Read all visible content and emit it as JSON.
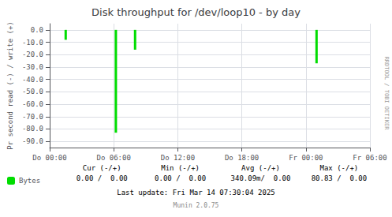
{
  "chart_data": {
    "type": "bar",
    "title": "Disk throughput for /dev/loop10 - by day",
    "ylabel": "Pr second read (-) / write (+)",
    "x": [
      1.5,
      6.2,
      8.0,
      25.0
    ],
    "series": [
      {
        "name": "Bytes",
        "color": "#00dd00",
        "values": [
          -8,
          -83,
          -16,
          -27
        ]
      }
    ],
    "xlim": [
      0,
      30
    ],
    "xticks": [
      {
        "value": 0,
        "label": "Do 00:00"
      },
      {
        "value": 6,
        "label": "Do 06:00"
      },
      {
        "value": 12,
        "label": "Do 12:00"
      },
      {
        "value": 18,
        "label": "Do 18:00"
      },
      {
        "value": 24,
        "label": "Fr 00:00"
      },
      {
        "value": 30,
        "label": "Fr 06:00"
      }
    ],
    "ylim": [
      -95,
      5
    ],
    "yticks": [
      {
        "value": 0,
        "label": "0.0"
      },
      {
        "value": -10,
        "label": "-10.0"
      },
      {
        "value": -20,
        "label": "-20.0"
      },
      {
        "value": -30,
        "label": "-30.0"
      },
      {
        "value": -40,
        "label": "-40.0"
      },
      {
        "value": -50,
        "label": "-50.0"
      },
      {
        "value": -60,
        "label": "-60.0"
      },
      {
        "value": -70,
        "label": "-70.0"
      },
      {
        "value": -80,
        "label": "-80.0"
      },
      {
        "value": -90,
        "label": "-90.0"
      }
    ],
    "grid": true,
    "legend": "bottom-left",
    "annotations": [
      "Cur (-/+)",
      "Min (-/+)",
      "Avg (-/+)",
      "Max (-/+)",
      "0.00 /  0.00",
      "0.00 /  0.00",
      "340.09m/  0.00",
      "80.83 /  0.00",
      "Last update: Fri Mar 14 07:30:04 2025",
      "Munin 2.0.75",
      "RRDTOOL / TOBI OETIKER"
    ]
  }
}
